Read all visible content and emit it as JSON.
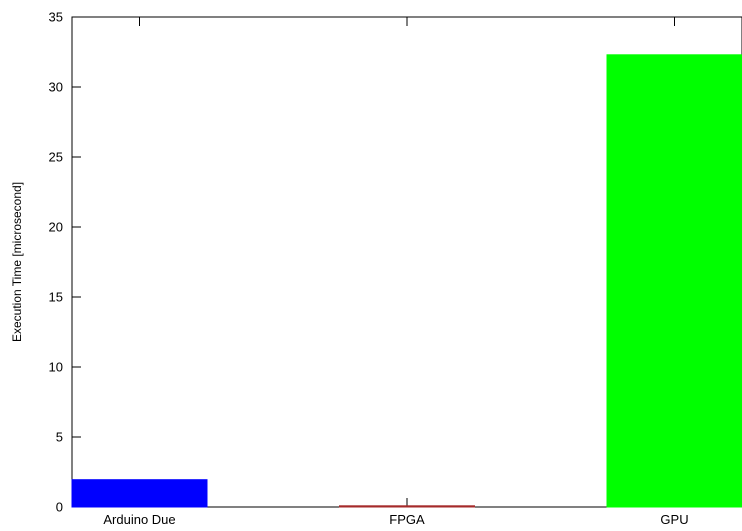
{
  "chart_data": {
    "type": "bar",
    "title": "",
    "xlabel": "",
    "ylabel": "Execution Time [microsecond]",
    "categories": [
      "Arduino Due",
      "FPGA",
      "GPU"
    ],
    "values": [
      1.95,
      0.05,
      32.3
    ],
    "colors": [
      "#0000ff",
      "#a52a2a",
      "#00ff00"
    ],
    "ylim": [
      0,
      35
    ],
    "yticks": [
      0,
      5,
      10,
      15,
      20,
      25,
      30,
      35
    ],
    "grid": false,
    "legend": "none"
  }
}
